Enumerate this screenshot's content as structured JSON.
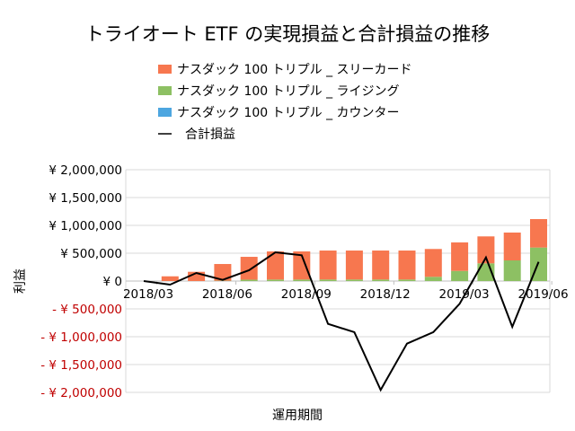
{
  "chart_data": {
    "type": "bar",
    "stacked": true,
    "title": "トライオート ETF の実現損益と合計損益の推移",
    "xlabel": "運用期間",
    "ylabel": "利益",
    "ylim": [
      -2000000,
      2000000
    ],
    "yticks": [
      2000000,
      1500000,
      1000000,
      500000,
      0,
      -500000,
      -1000000,
      -1500000,
      -2000000
    ],
    "ytick_labels": [
      "¥ 2,000,000",
      "¥ 1,500,000",
      "¥ 1,000,000",
      "¥ 500,000",
      "¥ 0",
      "- ¥ 500,000",
      "- ¥ 1,000,000",
      "- ¥ 1,500,000",
      "- ¥ 2,000,000"
    ],
    "categories": [
      "2018/03",
      "2018/04",
      "2018/05",
      "2018/06",
      "2018/07",
      "2018/08",
      "2018/09",
      "2018/10",
      "2018/11",
      "2018/12",
      "2019/01",
      "2019/02",
      "2019/03",
      "2019/04",
      "2019/05",
      "2019/06"
    ],
    "xtick_labels": [
      "2018/03",
      "2018/06",
      "2018/09",
      "2018/12",
      "2019/03",
      "2019/06"
    ],
    "grid": true,
    "legend_position": "top",
    "series": [
      {
        "name": "ナスダック 100 トリプル _ スリーカード",
        "kind": "bar",
        "color": "#F7774F",
        "values": [
          0,
          85000,
          166000,
          300000,
          410000,
          505000,
          505000,
          520000,
          520000,
          520000,
          520000,
          500000,
          512000,
          484000,
          500000,
          511000
        ]
      },
      {
        "name": "ナスダック 100 トリプル _ ライジング",
        "kind": "bar",
        "color": "#8DC063",
        "values": [
          0,
          0,
          0,
          6000,
          25000,
          27000,
          27000,
          28000,
          28000,
          28000,
          28000,
          76000,
          182000,
          318000,
          371000,
          602000
        ]
      },
      {
        "name": "ナスダック 100 トリプル _ カウンター",
        "kind": "bar",
        "color": "#4DA6E0",
        "values": [
          0,
          0,
          0,
          0,
          0,
          0,
          0,
          0,
          0,
          0,
          0,
          0,
          0,
          0,
          0,
          0
        ]
      },
      {
        "name": "合計損益",
        "kind": "line",
        "color": "#000000",
        "values": [
          0,
          -65000,
          145000,
          21000,
          194000,
          516000,
          463000,
          -769000,
          -919000,
          -1956000,
          -1124000,
          -919000,
          -408000,
          424000,
          -823000,
          344000
        ]
      }
    ],
    "colors": {
      "negative_tick_label": "#C00000",
      "grid": "#D9D9D9"
    }
  }
}
